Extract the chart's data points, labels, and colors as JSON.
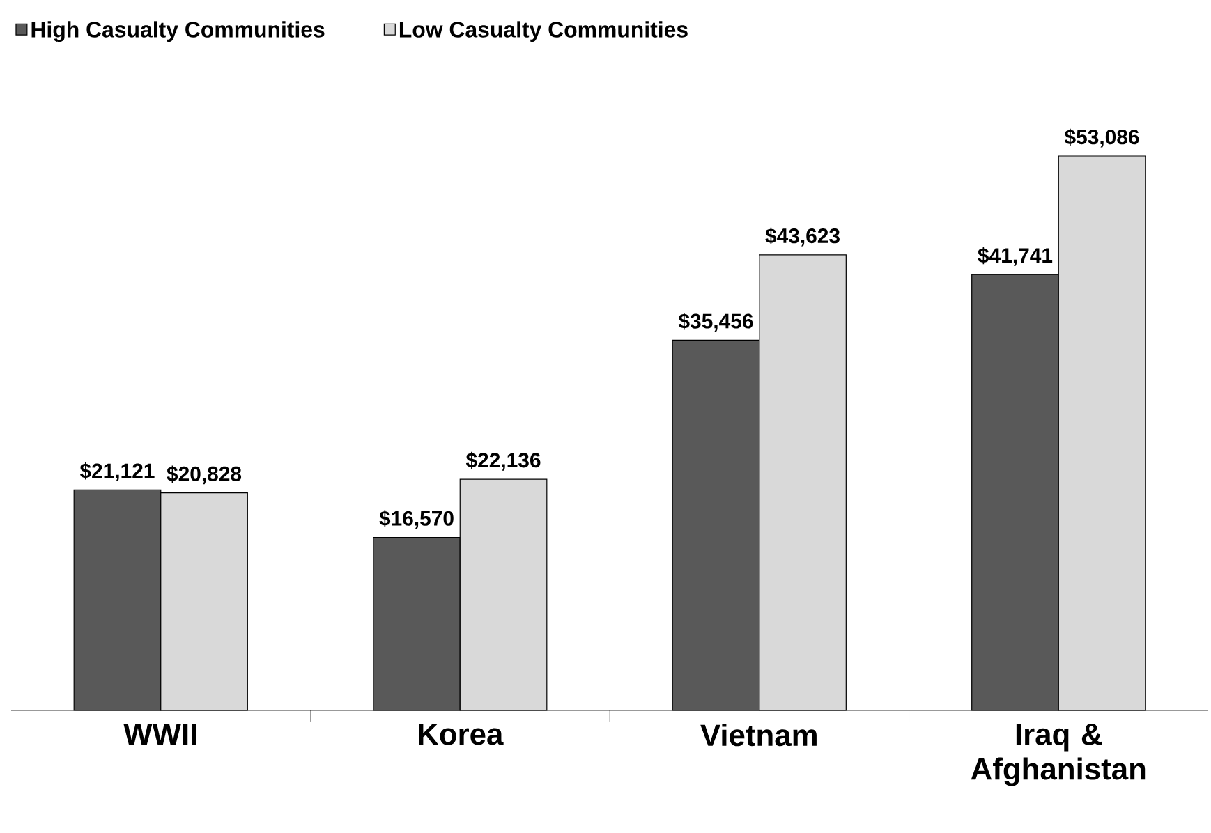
{
  "chart_data": {
    "type": "bar",
    "categories": [
      "WWII",
      "Korea",
      "Vietnam",
      "Iraq & Afghanistan"
    ],
    "series": [
      {
        "name": "High Casualty Communities",
        "color": "#595959",
        "values": [
          21121,
          16570,
          35456,
          41741
        ],
        "value_labels": [
          "$21,121",
          "$16,570",
          "$35,456",
          "$41,741"
        ]
      },
      {
        "name": "Low Casualty Communities",
        "color": "#d9d9d9",
        "values": [
          20828,
          22136,
          43623,
          53086
        ],
        "value_labels": [
          "$20,828",
          "$22,136",
          "$43,623",
          "$53,086"
        ]
      }
    ],
    "tick_labels": "x",
    "legend": "top left",
    "grid": false
  }
}
